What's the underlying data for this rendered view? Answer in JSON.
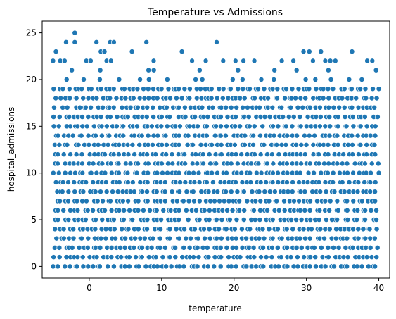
{
  "chart_data": {
    "type": "scatter",
    "title": "Temperature vs Admissions",
    "xlabel": "temperature",
    "ylabel": "hospital_admissions",
    "xlim": [
      -6.5,
      41.5
    ],
    "ylim": [
      -1.25,
      26.25
    ],
    "xticks": [
      0,
      10,
      20,
      30,
      40
    ],
    "yticks": [
      0,
      5,
      10,
      15,
      20,
      25
    ],
    "grid": false,
    "legend": "none",
    "marker_color": "#1f77b4",
    "marker_edge_color": "#ffffff",
    "points": [
      {
        "x": -2.0,
        "y": 25
      },
      {
        "x": -4.6,
        "y": 23
      },
      {
        "x": 1.6,
        "y": 23
      },
      {
        "x": 2.1,
        "y": 23
      },
      {
        "x": 5.9,
        "y": 23
      },
      {
        "x": 12.8,
        "y": 23
      },
      {
        "x": 29.6,
        "y": 23
      },
      {
        "x": 30.4,
        "y": 23
      },
      {
        "x": 32.0,
        "y": 23
      },
      {
        "x": 36.3,
        "y": 23
      },
      {
        "x": -3.2,
        "y": 24
      },
      {
        "x": -2.0,
        "y": 24
      },
      {
        "x": 1.0,
        "y": 24
      },
      {
        "x": 2.9,
        "y": 24
      },
      {
        "x": 3.4,
        "y": 24
      },
      {
        "x": 7.9,
        "y": 24
      },
      {
        "x": 17.6,
        "y": 24
      },
      {
        "x": -5.0,
        "y": 22
      },
      {
        "x": -4.0,
        "y": 22
      },
      {
        "x": -3.4,
        "y": 22
      },
      {
        "x": -0.4,
        "y": 22
      },
      {
        "x": 0.2,
        "y": 22
      },
      {
        "x": 2.4,
        "y": 22
      },
      {
        "x": 3.0,
        "y": 22
      },
      {
        "x": 8.9,
        "y": 22
      },
      {
        "x": 14.2,
        "y": 22
      },
      {
        "x": 16.1,
        "y": 22
      },
      {
        "x": 18.5,
        "y": 22
      },
      {
        "x": 20.2,
        "y": 22
      },
      {
        "x": 21.3,
        "y": 22
      },
      {
        "x": 22.8,
        "y": 22
      },
      {
        "x": 26.6,
        "y": 22
      },
      {
        "x": 28.2,
        "y": 22
      },
      {
        "x": 30.9,
        "y": 22
      },
      {
        "x": 32.6,
        "y": 22
      },
      {
        "x": 33.3,
        "y": 22
      },
      {
        "x": 34.0,
        "y": 22
      },
      {
        "x": 38.4,
        "y": 22
      },
      {
        "x": 39.1,
        "y": 22
      }
    ]
  }
}
